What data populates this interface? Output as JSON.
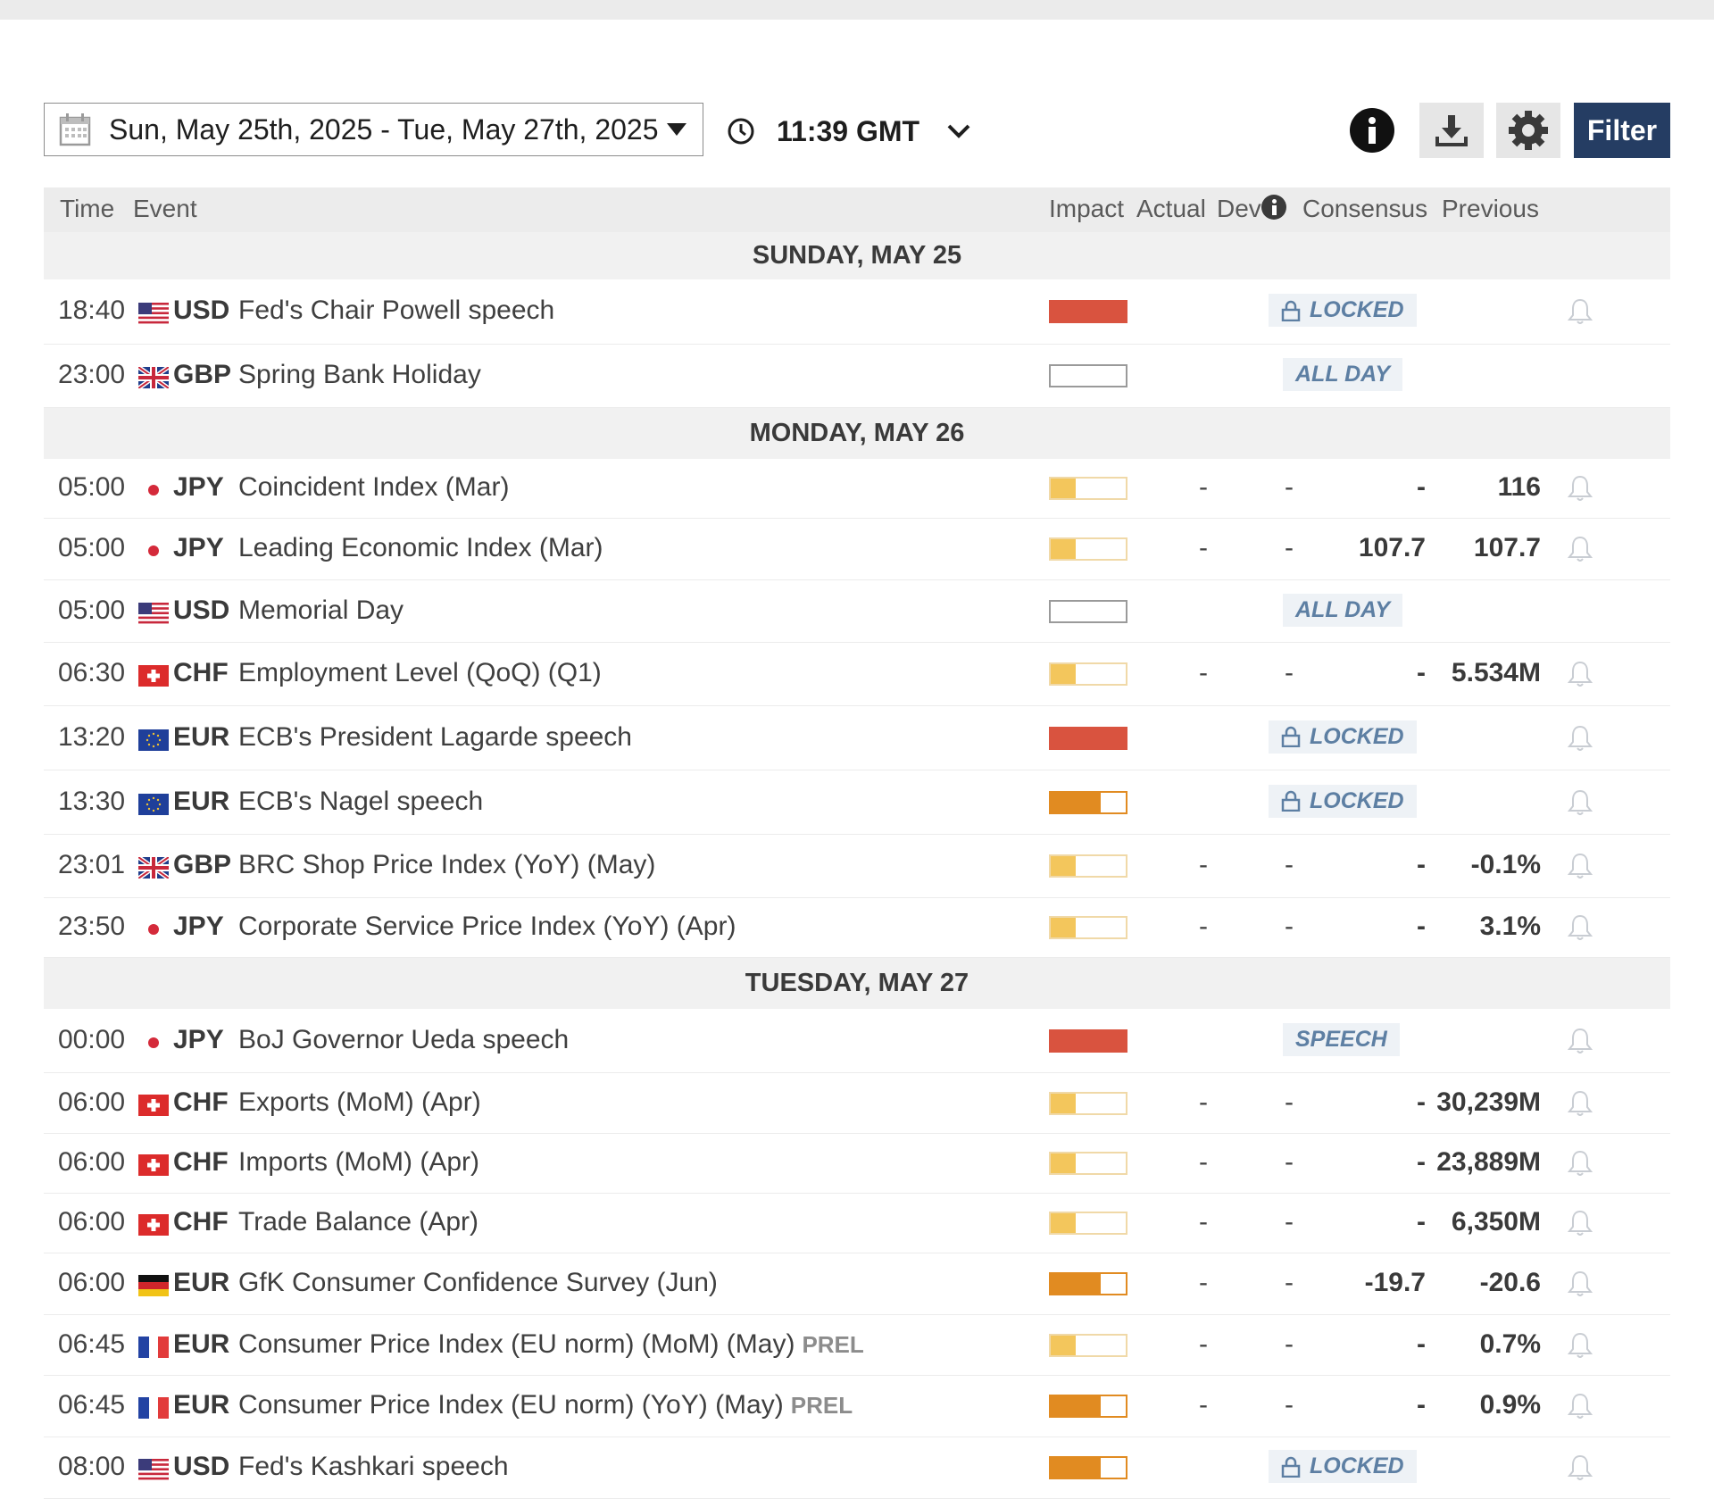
{
  "toolbar": {
    "date_range": "Sun, May 25th, 2025 -   Tue, May 27th, 2025",
    "time": "11:39 GMT",
    "filter_label": "Filter"
  },
  "colors": {
    "high": "#d9533f",
    "medium": "#e18b21",
    "low": "#f3c65c",
    "accent": "#253d63",
    "badge_text": "#5d7fa3"
  },
  "headers": {
    "time": "Time",
    "event": "Event",
    "impact": "Impact",
    "actual": "Actual",
    "dev": "Dev",
    "consensus": "Consensus",
    "previous": "Previous"
  },
  "days": [
    {
      "label": "SUNDAY, MAY 25",
      "events": [
        {
          "time": "18:40",
          "flag": "us-flag",
          "currency": "USD",
          "event": "Fed's Chair Powell speech",
          "impact": "high",
          "badge": "LOCKED",
          "lock": true,
          "bell": true
        },
        {
          "time": "23:00",
          "flag": "gb-flag",
          "currency": "GBP",
          "event": "Spring Bank Holiday",
          "impact": "none",
          "badge": "ALL DAY",
          "lock": false,
          "bell": false
        }
      ]
    },
    {
      "label": "MONDAY, MAY 26",
      "events": [
        {
          "time": "05:00",
          "flag": "jp-flag",
          "currency": "JPY",
          "event": "Coincident Index (Mar)",
          "impact": "low",
          "actual": "-",
          "dev": "-",
          "consensus": "-",
          "previous": "116",
          "bell": true
        },
        {
          "time": "05:00",
          "flag": "jp-flag",
          "currency": "JPY",
          "event": "Leading Economic Index (Mar)",
          "impact": "low",
          "actual": "-",
          "dev": "-",
          "consensus": "107.7",
          "previous": "107.7",
          "bell": true
        },
        {
          "time": "05:00",
          "flag": "us-flag",
          "currency": "USD",
          "event": "Memorial Day",
          "impact": "none",
          "badge": "ALL DAY",
          "lock": false,
          "bell": false
        },
        {
          "time": "06:30",
          "flag": "ch-flag",
          "currency": "CHF",
          "event": "Employment Level (QoQ) (Q1)",
          "impact": "low",
          "actual": "-",
          "dev": "-",
          "consensus": "-",
          "previous": "5.534M",
          "bell": true
        },
        {
          "time": "13:20",
          "flag": "eu-flag",
          "currency": "EUR",
          "event": "ECB's President Lagarde speech",
          "impact": "high",
          "badge": "LOCKED",
          "lock": true,
          "bell": true
        },
        {
          "time": "13:30",
          "flag": "eu-flag",
          "currency": "EUR",
          "event": "ECB's Nagel speech",
          "impact": "medium",
          "badge": "LOCKED",
          "lock": true,
          "bell": true
        },
        {
          "time": "23:01",
          "flag": "gb-flag",
          "currency": "GBP",
          "event": "BRC Shop Price Index (YoY) (May)",
          "impact": "low",
          "actual": "-",
          "dev": "-",
          "consensus": "-",
          "previous": "-0.1%",
          "bell": true
        },
        {
          "time": "23:50",
          "flag": "jp-flag",
          "currency": "JPY",
          "event": "Corporate Service Price Index (YoY) (Apr)",
          "impact": "low",
          "actual": "-",
          "dev": "-",
          "consensus": "-",
          "previous": "3.1%",
          "bell": true
        }
      ]
    },
    {
      "label": "TUESDAY, MAY 27",
      "events": [
        {
          "time": "00:00",
          "flag": "jp-flag",
          "currency": "JPY",
          "event": "BoJ Governor Ueda speech",
          "impact": "high",
          "badge": "SPEECH",
          "lock": false,
          "bell": true
        },
        {
          "time": "06:00",
          "flag": "ch-flag",
          "currency": "CHF",
          "event": "Exports (MoM) (Apr)",
          "impact": "low",
          "actual": "-",
          "dev": "-",
          "consensus": "-",
          "previous": "30,239M",
          "bell": true
        },
        {
          "time": "06:00",
          "flag": "ch-flag",
          "currency": "CHF",
          "event": "Imports (MoM) (Apr)",
          "impact": "low",
          "actual": "-",
          "dev": "-",
          "consensus": "-",
          "previous": "23,889M",
          "bell": true
        },
        {
          "time": "06:00",
          "flag": "ch-flag",
          "currency": "CHF",
          "event": "Trade Balance (Apr)",
          "impact": "low",
          "actual": "-",
          "dev": "-",
          "consensus": "-",
          "previous": "6,350M",
          "bell": true
        },
        {
          "time": "06:00",
          "flag": "de-flag",
          "currency": "EUR",
          "event": "GfK Consumer Confidence Survey (Jun)",
          "impact": "medium",
          "actual": "-",
          "dev": "-",
          "consensus": "-19.7",
          "previous": "-20.6",
          "bell": true
        },
        {
          "time": "06:45",
          "flag": "fr-flag",
          "currency": "EUR",
          "event": "Consumer Price Index (EU norm) (MoM) (May)",
          "prel": "PREL",
          "impact": "low",
          "actual": "-",
          "dev": "-",
          "consensus": "-",
          "previous": "0.7%",
          "bell": true
        },
        {
          "time": "06:45",
          "flag": "fr-flag",
          "currency": "EUR",
          "event": "Consumer Price Index (EU norm) (YoY) (May)",
          "prel": "PREL",
          "impact": "medium",
          "actual": "-",
          "dev": "-",
          "consensus": "-",
          "previous": "0.9%",
          "bell": true
        },
        {
          "time": "08:00",
          "flag": "us-flag",
          "currency": "USD",
          "event": "Fed's Kashkari speech",
          "impact": "medium",
          "badge": "LOCKED",
          "lock": true,
          "bell": true
        }
      ]
    }
  ]
}
